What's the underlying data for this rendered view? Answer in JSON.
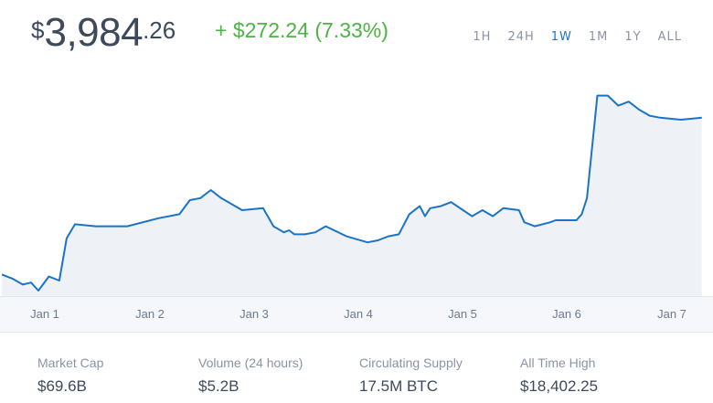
{
  "price": {
    "symbol": "$",
    "whole": "3,984",
    "cents": ".26"
  },
  "change": "+ $272.24 (7.33%)",
  "ranges": [
    {
      "label": "1H",
      "active": false
    },
    {
      "label": "24H",
      "active": false
    },
    {
      "label": "1W",
      "active": true
    },
    {
      "label": "1M",
      "active": false
    },
    {
      "label": "1Y",
      "active": false
    },
    {
      "label": "ALL",
      "active": false
    }
  ],
  "colors": {
    "line": "#1a73c7",
    "fill": "#eef2f7",
    "positive": "#4bb543",
    "active": "#1a73c7"
  },
  "chart_data": {
    "type": "area",
    "x_labels": [
      "Jan 1",
      "Jan 2",
      "Jan 3",
      "Jan 4",
      "Jan 5",
      "Jan 6",
      "Jan 7"
    ],
    "x": [
      0,
      0.1,
      0.2,
      0.28,
      0.35,
      0.45,
      0.55,
      0.62,
      0.7,
      0.9,
      1.2,
      1.5,
      1.7,
      1.8,
      1.9,
      2.0,
      2.1,
      2.2,
      2.3,
      2.5,
      2.6,
      2.7,
      2.75,
      2.8,
      2.9,
      3.0,
      3.1,
      3.3,
      3.5,
      3.6,
      3.7,
      3.8,
      3.9,
      4.0,
      4.05,
      4.1,
      4.2,
      4.3,
      4.5,
      4.6,
      4.7,
      4.8,
      4.95,
      5.0,
      5.1,
      5.25,
      5.3,
      5.5,
      5.55,
      5.6,
      5.7,
      5.8,
      5.9,
      6.0,
      6.1,
      6.2,
      6.3,
      6.5,
      6.7
    ],
    "y": [
      0.08,
      0.06,
      0.03,
      0.04,
      0.0,
      0.07,
      0.05,
      0.26,
      0.33,
      0.32,
      0.32,
      0.36,
      0.38,
      0.45,
      0.46,
      0.5,
      0.46,
      0.43,
      0.4,
      0.41,
      0.32,
      0.29,
      0.3,
      0.28,
      0.28,
      0.29,
      0.32,
      0.27,
      0.24,
      0.25,
      0.27,
      0.28,
      0.38,
      0.42,
      0.37,
      0.41,
      0.42,
      0.44,
      0.37,
      0.4,
      0.37,
      0.41,
      0.4,
      0.34,
      0.32,
      0.34,
      0.35,
      0.35,
      0.38,
      0.46,
      0.97,
      0.97,
      0.92,
      0.94,
      0.9,
      0.87,
      0.86,
      0.85,
      0.86
    ],
    "legend": []
  },
  "stats": [
    {
      "label": "Market Cap",
      "value": "$69.6B"
    },
    {
      "label": "Volume (24 hours)",
      "value": "$5.2B"
    },
    {
      "label": "Circulating Supply",
      "value": "17.5M BTC"
    },
    {
      "label": "All Time High",
      "value": "$18,402.25"
    }
  ]
}
